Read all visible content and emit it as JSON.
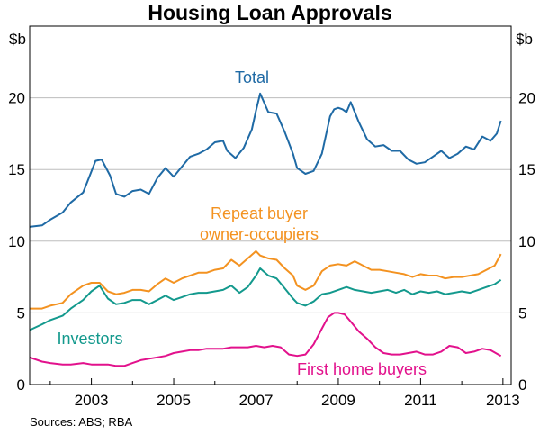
{
  "chart_data": {
    "type": "line",
    "title": "Housing Loan Approvals",
    "ylabel_left": "$b",
    "ylabel_right": "$b",
    "ylim": [
      0,
      25
    ],
    "yticks": [
      0,
      5,
      10,
      15,
      20
    ],
    "xlim": [
      2001.5,
      2013.2
    ],
    "xticks": [
      2003,
      2005,
      2007,
      2009,
      2011,
      2013
    ],
    "grid": true,
    "source": "Sources: ABS; RBA",
    "colors": {
      "total": "#1f6aa5",
      "repeat": "#f39220",
      "investors": "#13998d",
      "first_home": "#e2118c"
    },
    "series": [
      {
        "key": "total",
        "name": "Total",
        "label_lines": [
          "Total"
        ],
        "x": [
          2001.5,
          2001.8,
          2002.0,
          2002.3,
          2002.5,
          2002.8,
          2002.95,
          2003.1,
          2003.25,
          2003.45,
          2003.6,
          2003.8,
          2004.0,
          2004.2,
          2004.4,
          2004.6,
          2004.8,
          2005.0,
          2005.2,
          2005.4,
          2005.6,
          2005.8,
          2006.0,
          2006.2,
          2006.3,
          2006.5,
          2006.7,
          2006.9,
          2007.0,
          2007.1,
          2007.3,
          2007.5,
          2007.7,
          2007.9,
          2008.0,
          2008.2,
          2008.4,
          2008.6,
          2008.8,
          2008.9,
          2009.0,
          2009.1,
          2009.2,
          2009.3,
          2009.5,
          2009.7,
          2009.9,
          2010.1,
          2010.3,
          2010.5,
          2010.7,
          2010.9,
          2011.1,
          2011.3,
          2011.5,
          2011.7,
          2011.9,
          2012.1,
          2012.3,
          2012.5,
          2012.7,
          2012.85,
          2012.95
        ],
        "y": [
          11.0,
          11.1,
          11.5,
          12.0,
          12.7,
          13.4,
          14.5,
          15.6,
          15.7,
          14.6,
          13.3,
          13.1,
          13.5,
          13.6,
          13.3,
          14.4,
          15.1,
          14.5,
          15.2,
          15.9,
          16.1,
          16.4,
          16.9,
          17.0,
          16.3,
          15.8,
          16.5,
          17.8,
          19.1,
          20.3,
          19.0,
          18.9,
          17.6,
          16.1,
          15.1,
          14.7,
          14.9,
          16.1,
          18.7,
          19.2,
          19.3,
          19.2,
          19.0,
          19.7,
          18.3,
          17.1,
          16.6,
          16.7,
          16.3,
          16.3,
          15.7,
          15.4,
          15.5,
          15.9,
          16.3,
          15.8,
          16.1,
          16.6,
          16.4,
          17.3,
          17.0,
          17.5,
          18.4
        ]
      },
      {
        "key": "repeat",
        "name": "Repeat buyer owner-occupiers",
        "label_lines": [
          "Repeat buyer",
          "owner-occupiers"
        ],
        "x": [
          2001.5,
          2001.8,
          2002.0,
          2002.3,
          2002.5,
          2002.8,
          2003.0,
          2003.2,
          2003.4,
          2003.6,
          2003.8,
          2004.0,
          2004.2,
          2004.4,
          2004.6,
          2004.8,
          2005.0,
          2005.2,
          2005.4,
          2005.6,
          2005.8,
          2006.0,
          2006.2,
          2006.4,
          2006.6,
          2006.8,
          2007.0,
          2007.1,
          2007.3,
          2007.5,
          2007.7,
          2007.9,
          2008.0,
          2008.2,
          2008.4,
          2008.6,
          2008.8,
          2009.0,
          2009.2,
          2009.4,
          2009.6,
          2009.8,
          2010.0,
          2010.2,
          2010.4,
          2010.6,
          2010.8,
          2011.0,
          2011.2,
          2011.4,
          2011.6,
          2011.8,
          2012.0,
          2012.2,
          2012.4,
          2012.6,
          2012.8,
          2012.95
        ],
        "y": [
          5.3,
          5.3,
          5.5,
          5.7,
          6.3,
          6.9,
          7.1,
          7.1,
          6.5,
          6.3,
          6.4,
          6.6,
          6.6,
          6.5,
          7.0,
          7.4,
          7.1,
          7.4,
          7.6,
          7.8,
          7.8,
          8.0,
          8.1,
          8.7,
          8.3,
          8.8,
          9.3,
          9.0,
          8.8,
          8.7,
          8.1,
          7.6,
          6.9,
          6.6,
          6.9,
          7.9,
          8.3,
          8.4,
          8.3,
          8.6,
          8.3,
          8.0,
          8.0,
          7.9,
          7.8,
          7.7,
          7.5,
          7.7,
          7.6,
          7.6,
          7.4,
          7.5,
          7.5,
          7.6,
          7.7,
          8.0,
          8.3,
          9.1
        ]
      },
      {
        "key": "investors",
        "name": "Investors",
        "label_lines": [
          "Investors"
        ],
        "x": [
          2001.5,
          2001.8,
          2002.0,
          2002.3,
          2002.5,
          2002.8,
          2003.0,
          2003.2,
          2003.4,
          2003.6,
          2003.8,
          2004.0,
          2004.2,
          2004.4,
          2004.6,
          2004.8,
          2005.0,
          2005.2,
          2005.4,
          2005.6,
          2005.8,
          2006.0,
          2006.2,
          2006.4,
          2006.6,
          2006.8,
          2007.0,
          2007.1,
          2007.3,
          2007.5,
          2007.7,
          2007.9,
          2008.0,
          2008.2,
          2008.4,
          2008.6,
          2008.8,
          2009.0,
          2009.2,
          2009.4,
          2009.6,
          2009.8,
          2010.0,
          2010.2,
          2010.4,
          2010.6,
          2010.8,
          2011.0,
          2011.2,
          2011.4,
          2011.6,
          2011.8,
          2012.0,
          2012.2,
          2012.4,
          2012.6,
          2012.8,
          2012.95
        ],
        "y": [
          3.8,
          4.2,
          4.5,
          4.8,
          5.3,
          5.9,
          6.5,
          6.9,
          6.0,
          5.6,
          5.7,
          5.9,
          5.9,
          5.6,
          5.9,
          6.2,
          5.9,
          6.1,
          6.3,
          6.4,
          6.4,
          6.5,
          6.6,
          6.9,
          6.4,
          6.8,
          7.6,
          8.1,
          7.6,
          7.4,
          6.7,
          6.0,
          5.7,
          5.5,
          5.8,
          6.3,
          6.4,
          6.6,
          6.8,
          6.6,
          6.5,
          6.4,
          6.5,
          6.6,
          6.4,
          6.6,
          6.3,
          6.5,
          6.4,
          6.5,
          6.3,
          6.4,
          6.5,
          6.4,
          6.6,
          6.8,
          7.0,
          7.3
        ]
      },
      {
        "key": "first_home",
        "name": "First home buyers",
        "label_lines": [
          "First home buyers"
        ],
        "x": [
          2001.5,
          2001.8,
          2002.0,
          2002.3,
          2002.5,
          2002.8,
          2003.0,
          2003.2,
          2003.4,
          2003.6,
          2003.8,
          2004.0,
          2004.2,
          2004.4,
          2004.6,
          2004.8,
          2005.0,
          2005.2,
          2005.4,
          2005.6,
          2005.8,
          2006.0,
          2006.2,
          2006.4,
          2006.6,
          2006.8,
          2007.0,
          2007.2,
          2007.4,
          2007.6,
          2007.8,
          2008.0,
          2008.2,
          2008.4,
          2008.6,
          2008.75,
          2008.9,
          2009.0,
          2009.15,
          2009.3,
          2009.5,
          2009.7,
          2009.9,
          2010.1,
          2010.3,
          2010.5,
          2010.7,
          2010.9,
          2011.1,
          2011.3,
          2011.5,
          2011.7,
          2011.9,
          2012.1,
          2012.3,
          2012.5,
          2012.7,
          2012.95
        ],
        "y": [
          1.9,
          1.6,
          1.5,
          1.4,
          1.4,
          1.5,
          1.4,
          1.4,
          1.4,
          1.3,
          1.3,
          1.5,
          1.7,
          1.8,
          1.9,
          2.0,
          2.2,
          2.3,
          2.4,
          2.4,
          2.5,
          2.5,
          2.5,
          2.6,
          2.6,
          2.6,
          2.7,
          2.6,
          2.7,
          2.6,
          2.1,
          2.0,
          2.1,
          2.8,
          3.9,
          4.7,
          5.0,
          5.0,
          4.9,
          4.4,
          3.7,
          3.2,
          2.6,
          2.2,
          2.1,
          2.1,
          2.2,
          2.3,
          2.1,
          2.1,
          2.3,
          2.7,
          2.6,
          2.2,
          2.3,
          2.5,
          2.4,
          2.0
        ]
      }
    ]
  }
}
